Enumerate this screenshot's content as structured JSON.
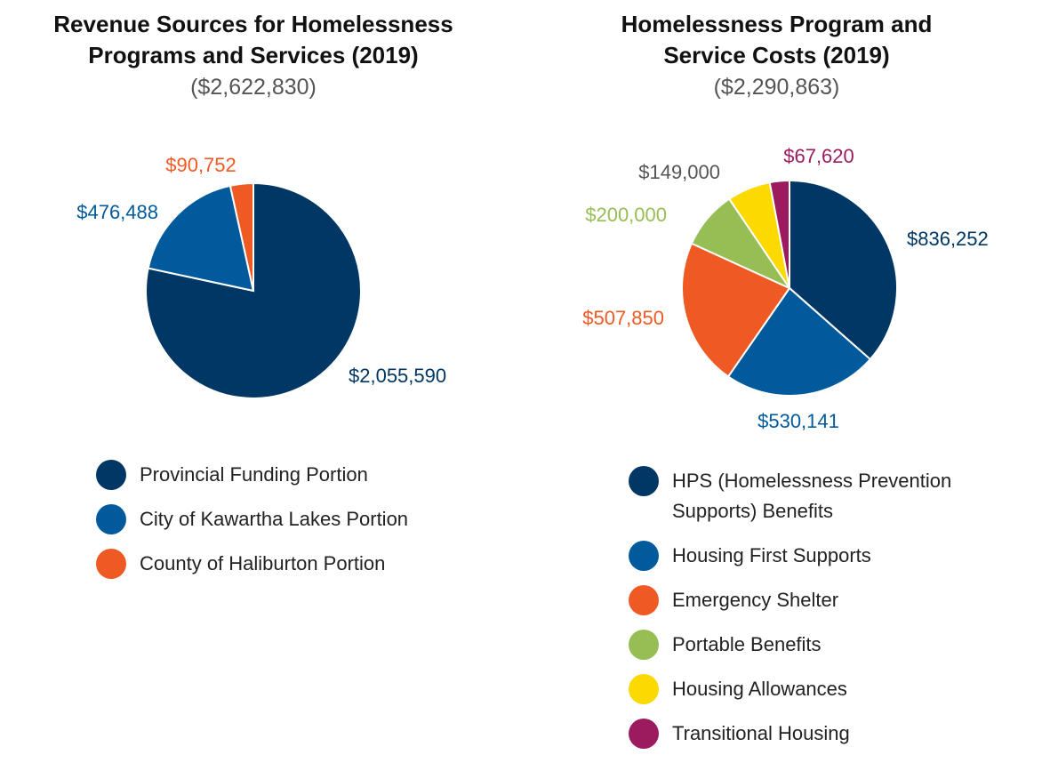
{
  "colors": {
    "dark_navy": "#003764",
    "blue": "#005a9c",
    "orange": "#ef5a24",
    "green": "#97bd55",
    "yellow": "#fcd900",
    "magenta": "#9b1b5e"
  },
  "chart_data": [
    {
      "type": "pie",
      "title": "Revenue Sources for Homelessness\nPrograms and Services (2019)",
      "subtitle": "($2,622,830)",
      "legend_position": "bottom",
      "slices": [
        {
          "label": "Provincial Funding Portion",
          "value": 2055590,
          "value_label": "$2,055,590",
          "color": "#003764"
        },
        {
          "label": "City of Kawartha Lakes Portion",
          "value": 476488,
          "value_label": "$476,488",
          "color": "#005a9c"
        },
        {
          "label": "County of Haliburton Portion",
          "value": 90752,
          "value_label": "$90,752",
          "color": "#ef5a24"
        }
      ]
    },
    {
      "type": "pie",
      "title": "Homelessness Program and\nService Costs (2019)",
      "subtitle": "($2,290,863)",
      "legend_position": "bottom",
      "slices": [
        {
          "label": "HPS (Homelessness Prevention Supports) Benefits",
          "value": 836252,
          "value_label": "$836,252",
          "color": "#003764"
        },
        {
          "label": "Housing First Supports",
          "value": 530141,
          "value_label": "$530,141",
          "color": "#005a9c"
        },
        {
          "label": "Emergency Shelter",
          "value": 507850,
          "value_label": "$507,850",
          "color": "#ef5a24"
        },
        {
          "label": "Portable Benefits",
          "value": 200000,
          "value_label": "$200,000",
          "color": "#97bd55"
        },
        {
          "label": "Housing Allowances",
          "value": 149000,
          "value_label": "$149,000",
          "color": "#fcd900"
        },
        {
          "label": "Transitional Housing",
          "value": 67620,
          "value_label": "$67,620",
          "color": "#9b1b5e"
        }
      ]
    }
  ]
}
